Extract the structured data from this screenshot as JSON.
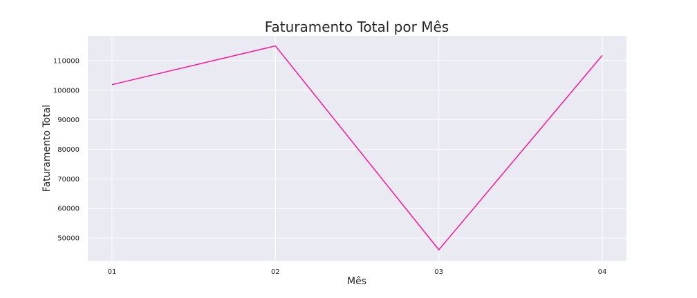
{
  "chart_data": {
    "type": "line",
    "title": "Faturamento Total por Mês",
    "xlabel": "Mês",
    "ylabel": "Faturamento Total",
    "categories": [
      "01",
      "02",
      "03",
      "04"
    ],
    "series": [
      {
        "values": [
          101900,
          115000,
          46000,
          111800
        ]
      }
    ],
    "yticks": [
      50000,
      60000,
      70000,
      80000,
      90000,
      100000,
      110000
    ],
    "ylim": [
      42300,
      118400
    ],
    "grid": true,
    "line_color": "#ff1493",
    "background_color": "#eaeaf2",
    "grid_color": "#ffffff"
  }
}
